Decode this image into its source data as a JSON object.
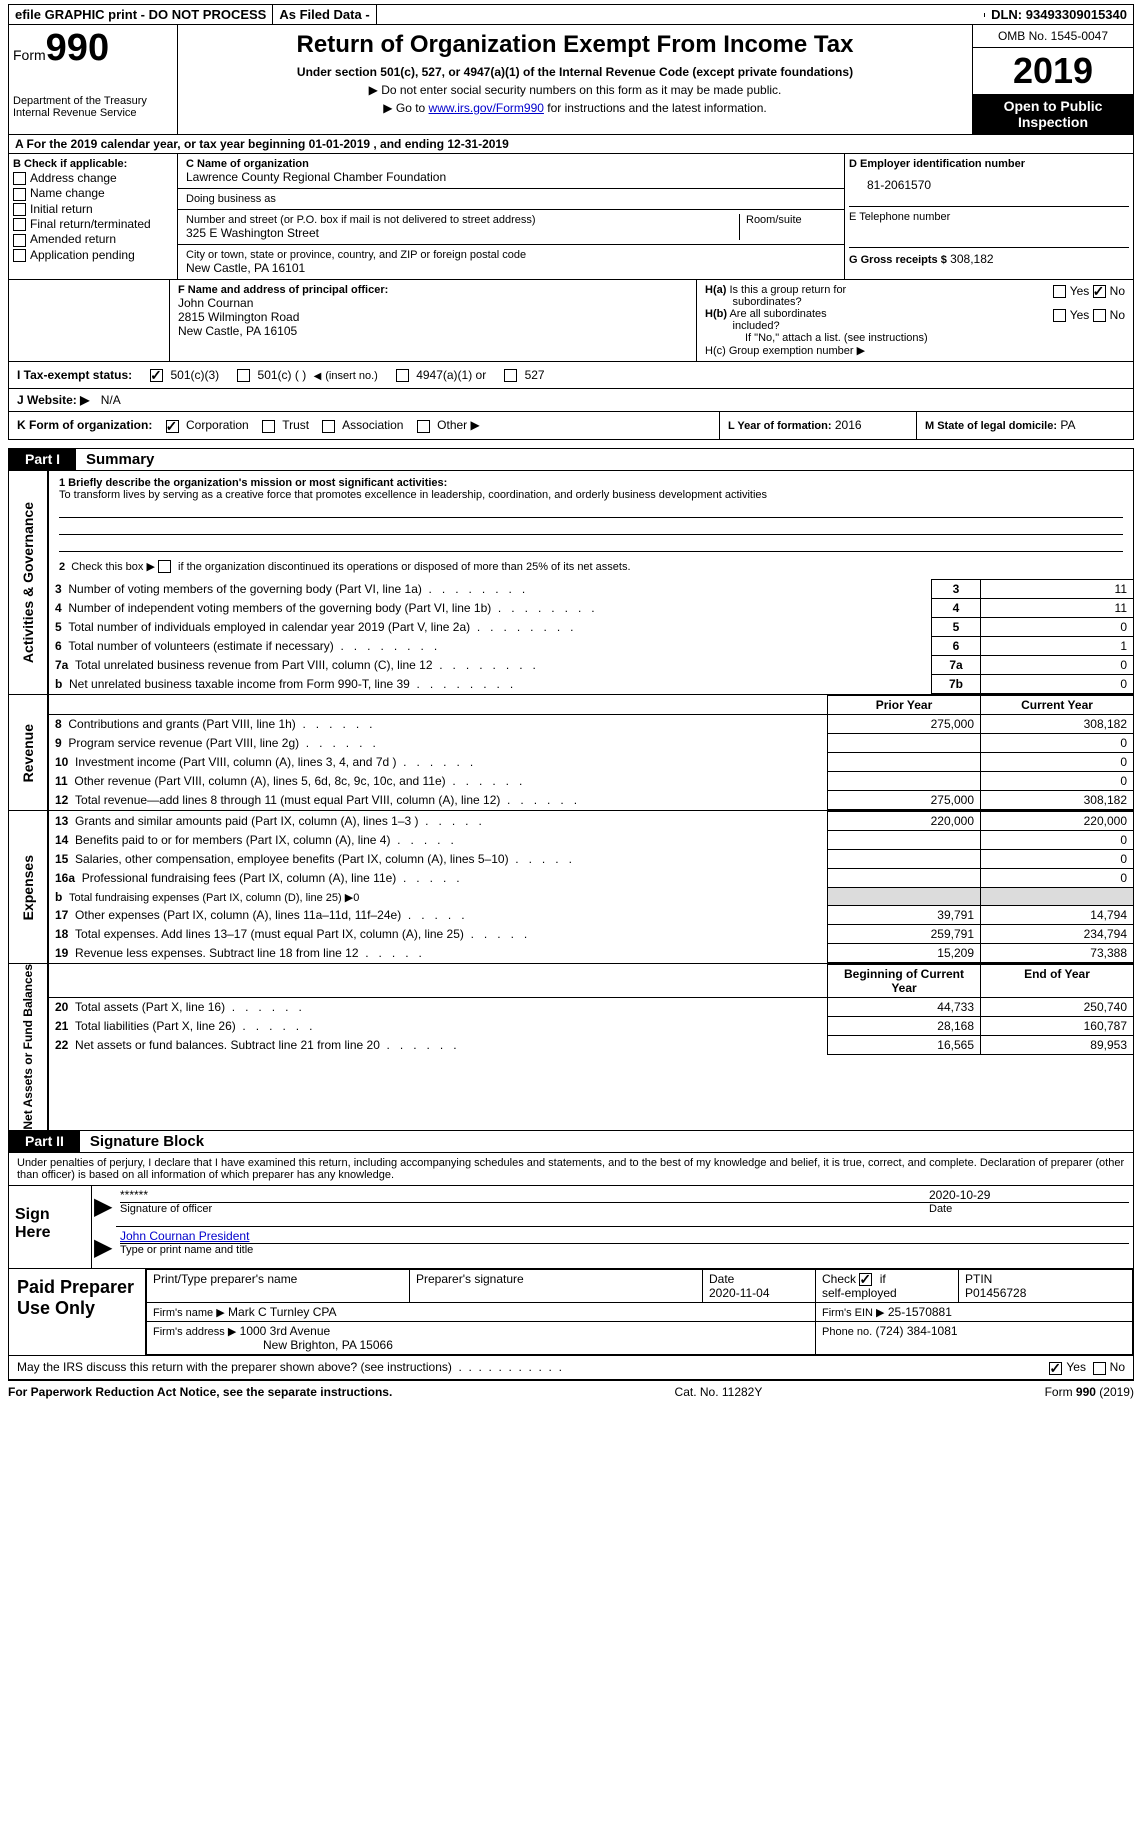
{
  "topbar": {
    "efile": "efile GRAPHIC print - DO NOT PROCESS",
    "asfiled": "As Filed Data -",
    "dln_label": "DLN:",
    "dln": "93493309015340"
  },
  "header": {
    "form_word": "Form",
    "form_number": "990",
    "dept1": "Department of the Treasury",
    "dept2": "Internal Revenue Service",
    "title": "Return of Organization Exempt From Income Tax",
    "subtitle": "Under section 501(c), 527, or 4947(a)(1) of the Internal Revenue Code (except private foundations)",
    "line1": "▶ Do not enter social security numbers on this form as it may be made public.",
    "line2_pre": "▶ Go to ",
    "line2_link": "www.irs.gov/Form990",
    "line2_post": " for instructions and the latest information.",
    "omb": "OMB No. 1545-0047",
    "year": "2019",
    "otp": "Open to Public Inspection"
  },
  "section_a": {
    "text": "A   For the 2019 calendar year, or tax year beginning 01-01-2019   , and ending 12-31-2019"
  },
  "col_b": {
    "header": "B Check if applicable:",
    "items": [
      "Address change",
      "Name change",
      "Initial return",
      "Final return/terminated",
      "Amended return",
      "Application pending"
    ]
  },
  "col_c": {
    "name_lbl": "C Name of organization",
    "name": "Lawrence County Regional Chamber Foundation",
    "dba_lbl": "Doing business as",
    "addr_lbl": "Number and street (or P.O. box if mail is not delivered to street address)",
    "room_lbl": "Room/suite",
    "addr": "325 E Washington Street",
    "city_lbl": "City or town, state or province, country, and ZIP or foreign postal code",
    "city": "New Castle, PA  16101",
    "f_lbl": "F  Name and address of principal officer:",
    "f_name": "John Cournan",
    "f_addr1": "2815 Wilmington Road",
    "f_addr2": "New Castle, PA  16105"
  },
  "col_d": {
    "ein_lbl": "D Employer identification number",
    "ein": "81-2061570",
    "tel_lbl": "E Telephone number",
    "g_lbl": "G Gross receipts $",
    "g_val": "308,182"
  },
  "col_h": {
    "ha": "H(a)  Is this a group return for subordinates?",
    "hb": "H(b)  Are all subordinates included?",
    "hb_note": "If \"No,\" attach a list. (see instructions)",
    "hc": "H(c)  Group exemption number ▶"
  },
  "line_i": {
    "label": "I   Tax-exempt status:",
    "o1": "501(c)(3)",
    "o2": "501(c) (   )",
    "o2_insert": "(insert no.)",
    "o3": "4947(a)(1) or",
    "o4": "527"
  },
  "line_j": {
    "label": "J   Website: ▶",
    "val": "N/A"
  },
  "line_k": {
    "label": "K Form of organization:",
    "o1": "Corporation",
    "o2": "Trust",
    "o3": "Association",
    "o4": "Other ▶",
    "l_lbl": "L Year of formation:",
    "l_val": "2016",
    "m_lbl": "M State of legal domicile:",
    "m_val": "PA"
  },
  "parts": {
    "p1_tab": "Part I",
    "p1_title": "Summary",
    "p2_tab": "Part II",
    "p2_title": "Signature Block"
  },
  "summary": {
    "side_ag": "Activities & Governance",
    "side_rev": "Revenue",
    "side_exp": "Expenses",
    "side_na": "Net Assets or Fund Balances",
    "l1_lbl": "1  Briefly describe the organization's mission or most significant activities:",
    "l1_text": "To transform lives by serving as a creative force that promotes excellence in leadership, coordination, and orderly business development activities",
    "l2": "2   Check this box ▶         if the organization discontinued its operations or disposed of more than 25% of its net assets.",
    "items_ag": [
      {
        "n": "3",
        "t": "Number of voting members of the governing body (Part VI, line 1a)",
        "r": "3",
        "v": "11"
      },
      {
        "n": "4",
        "t": "Number of independent voting members of the governing body (Part VI, line 1b)",
        "r": "4",
        "v": "11"
      },
      {
        "n": "5",
        "t": "Total number of individuals employed in calendar year 2019 (Part V, line 2a)",
        "r": "5",
        "v": "0"
      },
      {
        "n": "6",
        "t": "Total number of volunteers (estimate if necessary)",
        "r": "6",
        "v": "1"
      },
      {
        "n": "7a",
        "t": "Total unrelated business revenue from Part VIII, column (C), line 12",
        "r": "7a",
        "v": "0"
      },
      {
        "n": "b",
        "t": "Net unrelated business taxable income from Form 990-T, line 39",
        "r": "7b",
        "v": "0"
      }
    ],
    "hdr_prior": "Prior Year",
    "hdr_curr": "Current Year",
    "items_rev": [
      {
        "n": "8",
        "t": "Contributions and grants (Part VIII, line 1h)",
        "p": "275,000",
        "c": "308,182"
      },
      {
        "n": "9",
        "t": "Program service revenue (Part VIII, line 2g)",
        "p": "",
        "c": "0"
      },
      {
        "n": "10",
        "t": "Investment income (Part VIII, column (A), lines 3, 4, and 7d )",
        "p": "",
        "c": "0"
      },
      {
        "n": "11",
        "t": "Other revenue (Part VIII, column (A), lines 5, 6d, 8c, 9c, 10c, and 11e)",
        "p": "",
        "c": "0"
      },
      {
        "n": "12",
        "t": "Total revenue—add lines 8 through 11 (must equal Part VIII, column (A), line 12)",
        "p": "275,000",
        "c": "308,182"
      }
    ],
    "items_exp": [
      {
        "n": "13",
        "t": "Grants and similar amounts paid (Part IX, column (A), lines 1–3 )",
        "p": "220,000",
        "c": "220,000"
      },
      {
        "n": "14",
        "t": "Benefits paid to or for members (Part IX, column (A), line 4)",
        "p": "",
        "c": "0"
      },
      {
        "n": "15",
        "t": "Salaries, other compensation, employee benefits (Part IX, column (A), lines 5–10)",
        "p": "",
        "c": "0"
      },
      {
        "n": "16a",
        "t": "Professional fundraising fees (Part IX, column (A), line 11e)",
        "p": "",
        "c": "0"
      },
      {
        "n": "b",
        "t": "Total fundraising expenses (Part IX, column (D), line 25) ▶0",
        "p": "SHADE",
        "c": "SHADE"
      },
      {
        "n": "17",
        "t": "Other expenses (Part IX, column (A), lines 11a–11d, 11f–24e)",
        "p": "39,791",
        "c": "14,794"
      },
      {
        "n": "18",
        "t": "Total expenses. Add lines 13–17 (must equal Part IX, column (A), line 25)",
        "p": "259,791",
        "c": "234,794"
      },
      {
        "n": "19",
        "t": "Revenue less expenses. Subtract line 18 from line 12",
        "p": "15,209",
        "c": "73,388"
      }
    ],
    "hdr_boy": "Beginning of Current Year",
    "hdr_eoy": "End of Year",
    "items_na": [
      {
        "n": "20",
        "t": "Total assets (Part X, line 16)",
        "p": "44,733",
        "c": "250,740"
      },
      {
        "n": "21",
        "t": "Total liabilities (Part X, line 26)",
        "p": "28,168",
        "c": "160,787"
      },
      {
        "n": "22",
        "t": "Net assets or fund balances. Subtract line 21 from line 20",
        "p": "16,565",
        "c": "89,953"
      }
    ]
  },
  "sig": {
    "decl": "Under penalties of perjury, I declare that I have examined this return, including accompanying schedules and statements, and to the best of my knowledge and belief, it is true, correct, and complete. Declaration of preparer (other than officer) is based on all information of which preparer has any knowledge.",
    "sign_here": "Sign Here",
    "stars": "******",
    "sig_of": "Signature of officer",
    "date1": "2020-10-29",
    "date_lbl": "Date",
    "name_title": "John Cournan  President",
    "name_title_lbl": "Type or print name and title"
  },
  "prep": {
    "left": "Paid Preparer Use Only",
    "h1": "Print/Type preparer's name",
    "h2": "Preparer's signature",
    "h3": "Date",
    "h4": "Check        if self-employed",
    "h5": "PTIN",
    "date": "2020-11-04",
    "ptin": "P01456728",
    "firm_lbl": "Firm's name      ▶",
    "firm": "Mark C Turnley CPA",
    "ein_lbl": "Firm's EIN ▶",
    "ein": "25-1570881",
    "addr_lbl": "Firm's address ▶",
    "addr1": "1000 3rd Avenue",
    "addr2": "New Brighton, PA  15066",
    "phone_lbl": "Phone no.",
    "phone": "(724) 384-1081",
    "discuss": "May the IRS discuss this return with the preparer shown above? (see instructions)"
  },
  "footer": {
    "left": "For Paperwork Reduction Act Notice, see the separate instructions.",
    "center": "Cat. No. 11282Y",
    "right": "Form 990 (2019)"
  },
  "yesno": {
    "yes": "Yes",
    "no": "No"
  }
}
